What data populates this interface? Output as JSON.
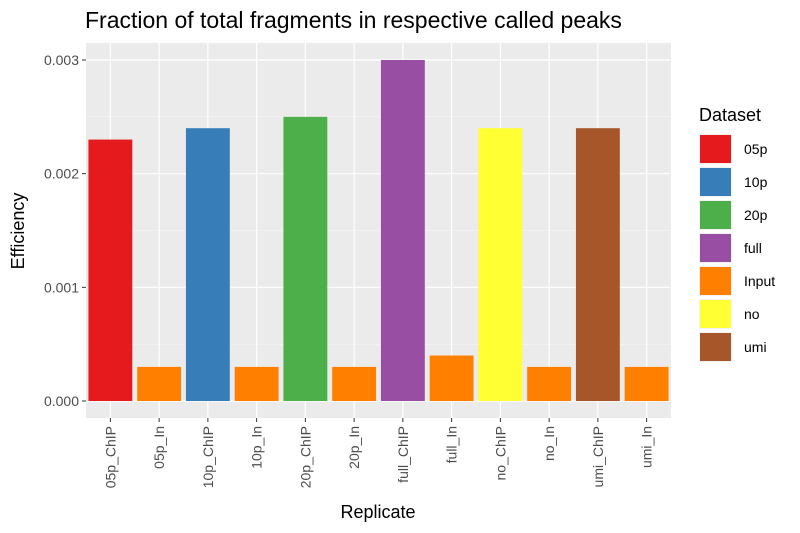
{
  "chart_data": {
    "type": "bar",
    "title": "Fraction of total fragments in respective called peaks",
    "xlabel": "Replicate",
    "ylabel": "Efficiency",
    "ylim": [
      0,
      0.00315
    ],
    "yticks": [
      "0.000",
      "0.001",
      "0.002",
      "0.003"
    ],
    "grid": true,
    "legend_position": "right",
    "legend_title": "Dataset",
    "categories": [
      "05p_ChIP",
      "05p_In",
      "10p_ChIP",
      "10p_In",
      "20p_ChIP",
      "20p_In",
      "full_ChIP",
      "full_In",
      "no_ChIP",
      "no_In",
      "umi_ChIP",
      "umi_In"
    ],
    "values": [
      0.0023,
      0.0003,
      0.0024,
      0.0003,
      0.0025,
      0.0003,
      0.003,
      0.0004,
      0.0024,
      0.0003,
      0.0024,
      0.0003
    ],
    "datasets": [
      "05p",
      "Input",
      "10p",
      "Input",
      "20p",
      "Input",
      "full",
      "Input",
      "no",
      "Input",
      "umi",
      "Input"
    ],
    "legend": [
      {
        "label": "05p",
        "color": "#e41a1c"
      },
      {
        "label": "10p",
        "color": "#377eb8"
      },
      {
        "label": "20p",
        "color": "#4daf4a"
      },
      {
        "label": "full",
        "color": "#984ea3"
      },
      {
        "label": "Input",
        "color": "#ff7f00"
      },
      {
        "label": "no",
        "color": "#ffff33"
      },
      {
        "label": "umi",
        "color": "#a65628"
      }
    ]
  }
}
